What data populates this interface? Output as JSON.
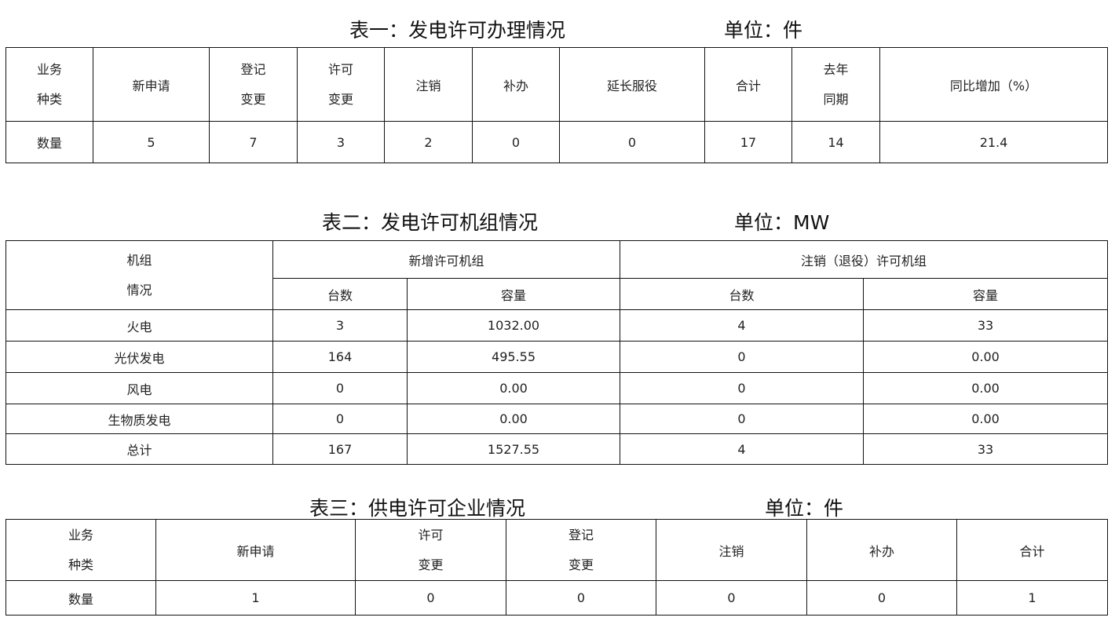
{
  "table1": {
    "title": "表一：发电许可办理情况",
    "unit": "单位：件",
    "headers": [
      [
        "业务",
        "种类"
      ],
      [
        "新申请"
      ],
      [
        "登记",
        "变更"
      ],
      [
        "许可",
        "变更"
      ],
      [
        "注销"
      ],
      [
        "补办"
      ],
      [
        "延长服役"
      ],
      [
        "合计"
      ],
      [
        "去年",
        "同期"
      ],
      [
        "同比增加（%）"
      ]
    ],
    "row_label": "数量",
    "values": [
      "5",
      "7",
      "3",
      "2",
      "0",
      "0",
      "17",
      "14",
      "21.4"
    ]
  },
  "table2": {
    "title": "表二：发电许可机组情况",
    "unit": "单位：MW",
    "corner": [
      "机组",
      "情况"
    ],
    "group_new": "新增许可机组",
    "group_cancel": "注销（退役）许可机组",
    "sub_count": "台数",
    "sub_capacity": "容量",
    "rows": [
      {
        "label": "火电",
        "new_count": "3",
        "new_capacity": "1032.00",
        "cancel_count": "4",
        "cancel_capacity": "33"
      },
      {
        "label": "光伏发电",
        "new_count": "164",
        "new_capacity": "495.55",
        "cancel_count": "0",
        "cancel_capacity": "0.00"
      },
      {
        "label": "风电",
        "new_count": "0",
        "new_capacity": "0.00",
        "cancel_count": "0",
        "cancel_capacity": "0.00"
      },
      {
        "label": "生物质发电",
        "new_count": "0",
        "new_capacity": "0.00",
        "cancel_count": "0",
        "cancel_capacity": "0.00"
      },
      {
        "label": "总计",
        "new_count": "167",
        "new_capacity": "1527.55",
        "cancel_count": "4",
        "cancel_capacity": "33"
      }
    ]
  },
  "table3": {
    "title": "表三：供电许可企业情况",
    "unit": "单位：件",
    "headers": [
      [
        "业务",
        "种类"
      ],
      [
        "新申请"
      ],
      [
        "许可",
        "变更"
      ],
      [
        "登记",
        "变更"
      ],
      [
        "注销"
      ],
      [
        "补办"
      ],
      [
        "合计"
      ]
    ],
    "row_label": "数量",
    "values": [
      "1",
      "0",
      "0",
      "0",
      "0",
      "1"
    ]
  }
}
